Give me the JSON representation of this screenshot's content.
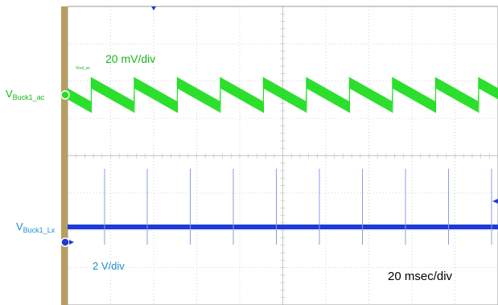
{
  "chart_data": {
    "type": "line",
    "grid": true,
    "x_divisions": 10,
    "y_divisions": 8,
    "channels": [
      {
        "label_main": "V",
        "label_sub": "Buck1_ac",
        "scale_label": "20  mV/div",
        "tiny_tag": "Vout_ac",
        "color": "#22dd22",
        "waveform": "sawtooth-ripple",
        "ripple_pp_div": 0.65
      },
      {
        "label_main": "V",
        "label_sub": "Buck1_Lx",
        "scale_label": "2  V/div",
        "color": "#1f3bd6",
        "waveform": "dc-with-spikes",
        "spike_times_div": [
          0.15,
          1.14,
          2.14,
          3.14,
          4.14,
          5.14,
          6.14,
          7.14,
          8.14,
          9.14
        ],
        "spike_height_div": 2.0
      }
    ],
    "timebase_label": "20 msec/div"
  },
  "colors": {
    "grid": "#c8c8c8",
    "frame": "#9a9a9a",
    "left_bar": "#b79e5f",
    "trigger_marker": "#1f3bd6",
    "label_text": "#1a8fd0",
    "ch1_text": "#18b818"
  }
}
